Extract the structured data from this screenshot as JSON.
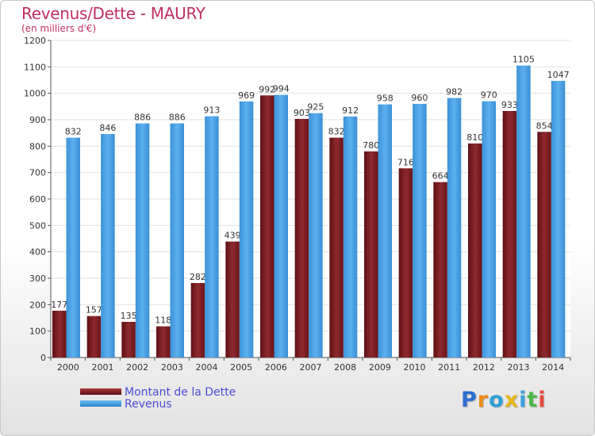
{
  "chart_data": {
    "type": "bar",
    "title": "Revenus/Dette - MAURY",
    "subtitle": "(en milliers d'€)",
    "categories": [
      "2000",
      "2001",
      "2002",
      "2003",
      "2004",
      "2005",
      "2006",
      "2007",
      "2008",
      "2009",
      "2010",
      "2011",
      "2012",
      "2013",
      "2014"
    ],
    "series": [
      {
        "name": "Montant de la Dette",
        "color": "#7a1e22",
        "values": [
          177,
          157,
          135,
          118,
          282,
          439,
          992,
          903,
          832,
          780,
          716,
          664,
          810,
          933,
          854
        ]
      },
      {
        "name": "Revenus",
        "color": "#3d9ae0",
        "values": [
          832,
          846,
          886,
          886,
          913,
          969,
          994,
          925,
          912,
          958,
          960,
          982,
          970,
          1105,
          1047
        ]
      }
    ],
    "ylim": [
      0,
      1200
    ],
    "yticks": [
      0,
      100,
      200,
      300,
      400,
      500,
      600,
      700,
      800,
      900,
      1000,
      1100,
      1200
    ],
    "grid": true,
    "legend": "bottom-left"
  },
  "logo": {
    "letters": [
      "P",
      "r",
      "o",
      "x",
      "i",
      "t",
      "i"
    ],
    "colors": [
      "#2e6fd0",
      "#f08a1c",
      "#2e9fd8",
      "#e8b51a",
      "#3aa0e0",
      "#4cb84a",
      "#e94a3a"
    ]
  }
}
